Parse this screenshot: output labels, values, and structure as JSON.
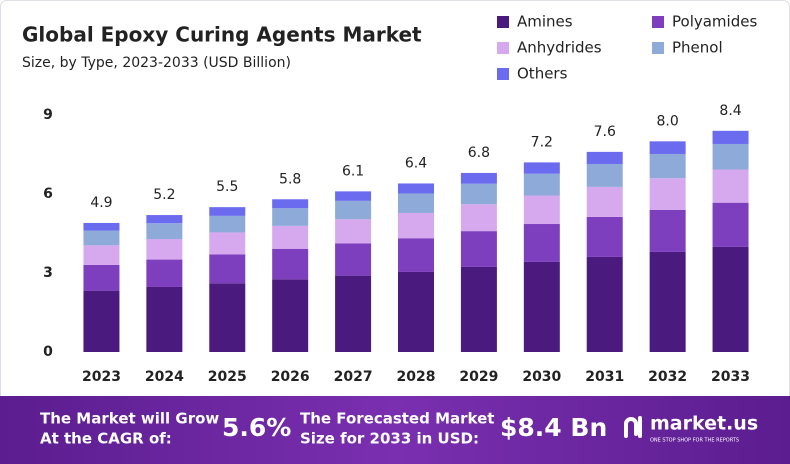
{
  "chart_data": {
    "type": "stacked-bar",
    "title": "Global Epoxy Curing Agents Market",
    "subtitle": "Size, by Type, 2023-2033 (USD Billion)",
    "categories": [
      "2023",
      "2024",
      "2025",
      "2026",
      "2027",
      "2028",
      "2029",
      "2030",
      "2031",
      "2032",
      "2033"
    ],
    "series": [
      {
        "name": "Amines",
        "color": "#4a1a7e",
        "values": [
          2.33,
          2.47,
          2.61,
          2.76,
          2.9,
          3.04,
          3.23,
          3.42,
          3.61,
          3.8,
          3.99
        ]
      },
      {
        "name": "Polyamides",
        "color": "#7d3fbd",
        "values": [
          0.98,
          1.04,
          1.1,
          1.16,
          1.22,
          1.28,
          1.36,
          1.44,
          1.52,
          1.6,
          1.68
        ]
      },
      {
        "name": "Anhydrides",
        "color": "#d6a9ef",
        "values": [
          0.74,
          0.78,
          0.83,
          0.87,
          0.92,
          0.96,
          1.02,
          1.08,
          1.14,
          1.2,
          1.26
        ]
      },
      {
        "name": "Phenol",
        "color": "#8eaad9",
        "values": [
          0.56,
          0.6,
          0.63,
          0.67,
          0.7,
          0.74,
          0.78,
          0.83,
          0.87,
          0.92,
          0.97
        ]
      },
      {
        "name": "Others",
        "color": "#6a6bef",
        "values": [
          0.29,
          0.31,
          0.33,
          0.34,
          0.36,
          0.38,
          0.41,
          0.43,
          0.46,
          0.48,
          0.5
        ]
      }
    ],
    "totals": {
      "values": [
        4.9,
        5.2,
        5.5,
        5.8,
        6.1,
        6.4,
        6.8,
        7.2,
        7.6,
        8.0,
        8.4
      ],
      "value_labels": [
        "4.9",
        "5.2",
        "5.5",
        "5.8",
        "6.1",
        "6.4",
        "6.8",
        "7.2",
        "7.6",
        "8.0",
        "8.4"
      ]
    },
    "ylim": [
      0,
      9
    ],
    "yticks": [
      0,
      3,
      6,
      9
    ],
    "grid": false,
    "legend": "top-right"
  },
  "footer": {
    "cagr_text": [
      "The Market will Grow",
      "At the CAGR of:"
    ],
    "cagr": "5.6%",
    "forecast_text": [
      "The Forecasted Market",
      "Size for 2033 in USD:"
    ],
    "forecast": "$8.4 Bn",
    "brand": "market.us",
    "tagline": "ONE STOP SHOP FOR THE REPORTS"
  }
}
